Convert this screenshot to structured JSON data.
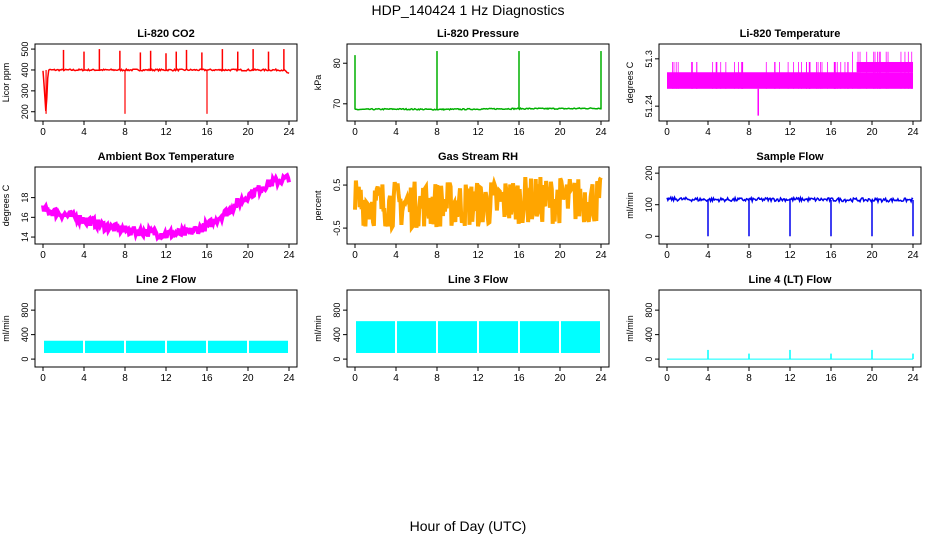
{
  "page": {
    "title": "HDP_140424  1 Hz Diagnostics",
    "footer_xlabel": "Hour of Day (UTC)"
  },
  "chart_data": [
    {
      "type": "line",
      "title": "Li-820 CO2",
      "ylabel": "Licor ppm",
      "color": "#ff0000",
      "x": [
        0,
        0.3,
        0.5,
        2,
        4,
        5.5,
        8,
        9.5,
        12,
        13,
        14,
        16,
        17.5,
        19,
        20.5,
        22,
        23.5,
        24
      ],
      "y": [
        400,
        190,
        400,
        400,
        400,
        400,
        400,
        400,
        400,
        400,
        400,
        400,
        400,
        400,
        400,
        400,
        400,
        380
      ],
      "ylim": [
        170,
        510
      ],
      "yticks": [
        200,
        300,
        400,
        500
      ],
      "xticks": [
        0,
        4,
        8,
        12,
        16,
        20,
        24
      ],
      "xlim": [
        0,
        24
      ]
    },
    {
      "type": "line",
      "title": "Li-820 Pressure",
      "ylabel": "kPa",
      "color": "#00b000",
      "x": [
        0,
        0.2,
        4,
        8,
        12,
        16,
        20,
        24
      ],
      "y": [
        68.6,
        68.6,
        68.7,
        68.6,
        68.7,
        68.8,
        68.8,
        68.9
      ],
      "ylim": [
        66.5,
        84
      ],
      "yticks": [
        70,
        80
      ],
      "xticks": [
        0,
        4,
        8,
        12,
        16,
        20,
        24
      ],
      "xlim": [
        0,
        24
      ]
    },
    {
      "type": "line",
      "title": "Li-820 Temperature",
      "ylabel": "degrees C",
      "color": "#ff00ff",
      "x": [
        0,
        8,
        8.9,
        9,
        16,
        18.5,
        20,
        21.5,
        24
      ],
      "y": [
        51.26,
        51.26,
        51.22,
        51.26,
        51.26,
        51.26,
        51.28,
        51.28,
        51.28
      ],
      "ylim": [
        51.225,
        51.315
      ],
      "yticks": [
        51.24,
        51.3
      ],
      "xticks": [
        0,
        4,
        8,
        12,
        16,
        20,
        24
      ],
      "xlim": [
        0,
        24
      ]
    },
    {
      "type": "line",
      "title": "Ambient Box Temperature",
      "ylabel": "degrees C",
      "color": "#ff00ff",
      "x": [
        0,
        2,
        4,
        6,
        8,
        10,
        12,
        14,
        16,
        18,
        20,
        22,
        24
      ],
      "y": [
        16.8,
        16.3,
        15.8,
        15.1,
        14.7,
        14.5,
        14.3,
        14.4,
        15.1,
        16.6,
        18.2,
        19.4,
        20.0
      ],
      "ylim": [
        13.6,
        20.8
      ],
      "yticks": [
        14,
        16,
        18
      ],
      "xticks": [
        0,
        4,
        8,
        12,
        16,
        20,
        24
      ],
      "xlim": [
        0,
        24
      ]
    },
    {
      "type": "line",
      "title": "Gas Stream RH",
      "ylabel": "percent",
      "color": "#ffa500",
      "x": [
        0,
        4,
        8,
        12,
        14,
        16,
        20,
        24
      ],
      "y": [
        0.1,
        0.05,
        0.05,
        0.05,
        0.1,
        0.15,
        0.15,
        0.15
      ],
      "ylim": [
        -0.8,
        0.85
      ],
      "yticks": [
        -0.5,
        0.5
      ],
      "xticks": [
        0,
        4,
        8,
        12,
        16,
        20,
        24
      ],
      "xlim": [
        0,
        24
      ]
    },
    {
      "type": "line",
      "title": "Sample Flow",
      "ylabel": "ml/min",
      "color": "#0000ee",
      "x": [
        0,
        4,
        8,
        12,
        16,
        20,
        24
      ],
      "y": [
        118,
        116,
        116,
        117,
        116,
        115,
        115
      ],
      "ylim": [
        -15,
        210
      ],
      "yticks": [
        0,
        100,
        200
      ],
      "xticks": [
        0,
        4,
        8,
        12,
        16,
        20,
        24
      ],
      "xlim": [
        0,
        24
      ]
    },
    {
      "type": "line",
      "title": "Line 2 Flow",
      "ylabel": "ml/min",
      "color": "#00ffff",
      "x": [
        0,
        24
      ],
      "y": [
        300,
        300
      ],
      "ylim": [
        -80,
        1080
      ],
      "yticks": [
        0,
        400,
        800
      ],
      "xticks": [
        0,
        4,
        8,
        12,
        16,
        20,
        24
      ],
      "xlim": [
        0,
        24
      ]
    },
    {
      "type": "line",
      "title": "Line 3 Flow",
      "ylabel": "ml/min",
      "color": "#00ffff",
      "x": [
        0,
        24
      ],
      "y": [
        620,
        620
      ],
      "ylim": [
        -80,
        1080
      ],
      "yticks": [
        0,
        400,
        800
      ],
      "xticks": [
        0,
        4,
        8,
        12,
        16,
        20,
        24
      ],
      "xlim": [
        0,
        24
      ]
    },
    {
      "type": "line",
      "title": "Line 4 (LT) Flow",
      "ylabel": "ml/min",
      "color": "#00ffff",
      "x": [
        0,
        4,
        8,
        12,
        16,
        20,
        24
      ],
      "y": [
        0,
        0,
        0,
        0,
        0,
        0,
        0
      ],
      "ylim": [
        -80,
        1080
      ],
      "yticks": [
        0,
        400,
        800
      ],
      "xticks": [
        0,
        4,
        8,
        12,
        16,
        20,
        24
      ],
      "xlim": [
        0,
        24
      ]
    }
  ]
}
